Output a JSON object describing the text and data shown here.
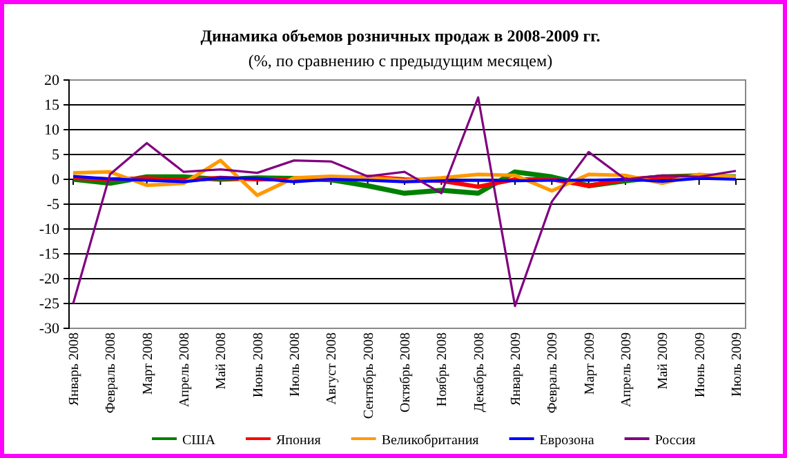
{
  "chart_data": {
    "type": "line",
    "title": "Динамика объемов розничных продаж в 2008-2009 гг.",
    "subtitle": "(%, по сравнению с предыдущим месяцем)",
    "categories": [
      "Январь 2008",
      "Февраль 2008",
      "Март 2008",
      "Апрель 2008",
      "Май 2008",
      "Июнь 2008",
      "Июль 2008",
      "Август 2008",
      "Сентябрь 2008",
      "Октябрь 2008",
      "Ноябрь 2008",
      "Декабрь 2008",
      "Январь 2009",
      "Февраль 2009",
      "Март 2009",
      "Апрель 2009",
      "Май 2009",
      "Июнь 2009",
      "Июль 2009"
    ],
    "series": [
      {
        "name": "США",
        "color": "#008000",
        "values": [
          0,
          -0.8,
          0.5,
          0.5,
          0,
          0.3,
          0.2,
          -0.1,
          -1.3,
          -2.8,
          -2.2,
          -2.8,
          1.5,
          0.5,
          -1.3,
          -0.3,
          0.5,
          0.7,
          0.5
        ]
      },
      {
        "name": "Япония",
        "color": "#ff0000",
        "values": [
          0.3,
          0,
          0.2,
          -0.2,
          0.3,
          0,
          0,
          0,
          0.5,
          0,
          -0.3,
          -1.5,
          0,
          0,
          -1.3,
          0,
          0.5,
          0.5,
          0.3
        ]
      },
      {
        "name": "Великобритания",
        "color": "#ff9900",
        "values": [
          1.3,
          1.5,
          -1.2,
          -0.8,
          3.8,
          -3.2,
          0.3,
          0.6,
          0.4,
          -0.2,
          0.3,
          1,
          0.8,
          -2.3,
          1,
          0.8,
          -0.8,
          1,
          0.5
        ]
      },
      {
        "name": "Еврозона",
        "color": "#0000ff",
        "values": [
          0.6,
          0.1,
          -0.2,
          -0.5,
          0.3,
          0.2,
          -0.5,
          0,
          -0.2,
          -0.5,
          -0.3,
          -0.2,
          -0.3,
          -0.2,
          -0.2,
          0,
          -0.4,
          0.2,
          0
        ]
      },
      {
        "name": "Россия",
        "color": "#800080",
        "values": [
          -25,
          1,
          7.3,
          1.5,
          2,
          1.3,
          3.8,
          3.6,
          0.6,
          1.5,
          -2.8,
          16.5,
          -25.5,
          -4.5,
          5.5,
          0,
          0.8,
          0.5,
          1.7
        ]
      }
    ],
    "ylim": [
      -30,
      20
    ],
    "yticks": [
      -30,
      -25,
      -20,
      -15,
      -10,
      -5,
      0,
      5,
      10,
      15,
      20
    ],
    "grid": "y",
    "legend": "bottom",
    "marker": "none",
    "line_style": "solid"
  }
}
